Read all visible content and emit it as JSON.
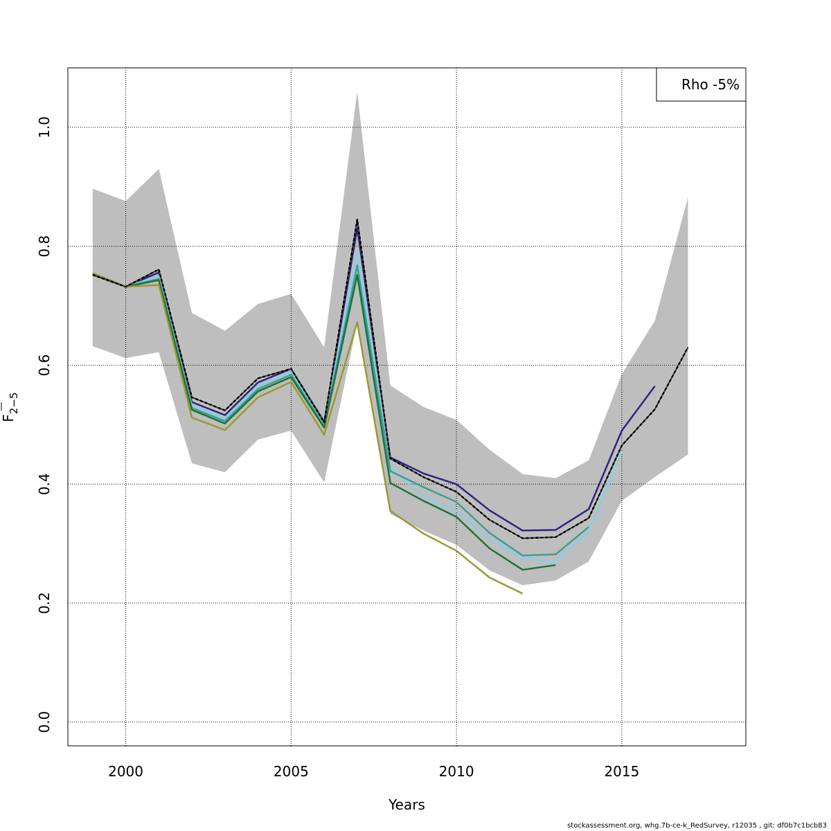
{
  "chart_data": {
    "type": "line",
    "xlabel": "Years",
    "ylabel_main": "F",
    "ylabel_sub": "2−5",
    "xlim": [
      1998.25,
      2018.75
    ],
    "ylim": [
      -0.04,
      1.1
    ],
    "xticks": [
      2000,
      2005,
      2010,
      2015
    ],
    "yticks": [
      0.0,
      0.2,
      0.4,
      0.6,
      0.8,
      1.0
    ],
    "ytick_labels": [
      "0.0",
      "0.2",
      "0.4",
      "0.6",
      "0.8",
      "1.0"
    ],
    "grid": true,
    "legend": {
      "text": "Rho -5%",
      "position": "top-right"
    },
    "confidence_band": {
      "color": "#bebebe",
      "x": [
        1999,
        2000,
        2001,
        2002,
        2003,
        2004,
        2005,
        2006,
        2007,
        2008,
        2009,
        2010,
        2011,
        2012,
        2013,
        2014,
        2015,
        2016,
        2017
      ],
      "upper": [
        0.897,
        0.876,
        0.93,
        0.688,
        0.658,
        0.703,
        0.72,
        0.63,
        1.06,
        0.566,
        0.53,
        0.508,
        0.458,
        0.417,
        0.41,
        0.44,
        0.585,
        0.675,
        0.882
      ],
      "lower": [
        0.632,
        0.612,
        0.622,
        0.435,
        0.42,
        0.475,
        0.49,
        0.403,
        0.672,
        0.35,
        0.322,
        0.298,
        0.255,
        0.23,
        0.238,
        0.27,
        0.372,
        0.412,
        0.45
      ]
    },
    "series": [
      {
        "color": "#000000",
        "dashed": true,
        "x": [
          1999,
          2000,
          2001,
          2002,
          2003,
          2004,
          2005,
          2006,
          2007,
          2008,
          2009,
          2010,
          2011,
          2012,
          2013,
          2014,
          2015,
          2016,
          2017
        ],
        "values": [
          0.752,
          0.732,
          0.761,
          0.546,
          0.524,
          0.578,
          0.594,
          0.504,
          0.845,
          0.443,
          0.412,
          0.387,
          0.34,
          0.309,
          0.311,
          0.343,
          0.465,
          0.526,
          0.63
        ]
      },
      {
        "color": "#2e2483",
        "dashed": false,
        "x": [
          1999,
          2000,
          2001,
          2002,
          2003,
          2004,
          2005,
          2006,
          2007,
          2008,
          2009,
          2010,
          2011,
          2012,
          2013,
          2014,
          2015,
          2016
        ],
        "values": [
          0.752,
          0.732,
          0.756,
          0.538,
          0.516,
          0.571,
          0.594,
          0.505,
          0.83,
          0.445,
          0.418,
          0.4,
          0.356,
          0.322,
          0.323,
          0.358,
          0.49,
          0.565
        ]
      },
      {
        "color": "#87ceeb",
        "dashed": false,
        "x": [
          1999,
          2000,
          2001,
          2002,
          2003,
          2004,
          2005,
          2006,
          2007,
          2008,
          2009,
          2010,
          2011,
          2012,
          2013,
          2014,
          2015
        ],
        "values": [
          0.752,
          0.732,
          0.75,
          0.532,
          0.51,
          0.565,
          0.588,
          0.5,
          0.79,
          0.428,
          0.38,
          0.355,
          0.308,
          0.275,
          0.27,
          0.32,
          0.455
        ]
      },
      {
        "color": "#3f9f93",
        "dashed": false,
        "x": [
          1999,
          2000,
          2001,
          2002,
          2003,
          2004,
          2005,
          2006,
          2007,
          2008,
          2009,
          2010,
          2011,
          2012,
          2013,
          2014
        ],
        "values": [
          0.752,
          0.732,
          0.745,
          0.528,
          0.506,
          0.56,
          0.584,
          0.497,
          0.768,
          0.422,
          0.395,
          0.37,
          0.318,
          0.28,
          0.282,
          0.328
        ]
      },
      {
        "color": "#1b7436",
        "dashed": false,
        "x": [
          1999,
          2000,
          2001,
          2002,
          2003,
          2004,
          2005,
          2006,
          2007,
          2008,
          2009,
          2010,
          2011,
          2012,
          2013
        ],
        "values": [
          0.752,
          0.732,
          0.743,
          0.525,
          0.502,
          0.556,
          0.58,
          0.495,
          0.752,
          0.402,
          0.372,
          0.345,
          0.292,
          0.256,
          0.264
        ]
      },
      {
        "color": "#999933",
        "dashed": false,
        "x": [
          1999,
          2000,
          2001,
          2002,
          2003,
          2004,
          2005,
          2006,
          2007,
          2008,
          2009,
          2010,
          2011,
          2012
        ],
        "values": [
          0.755,
          0.732,
          0.735,
          0.512,
          0.491,
          0.546,
          0.572,
          0.483,
          0.672,
          0.355,
          0.317,
          0.288,
          0.243,
          0.216
        ]
      }
    ]
  },
  "footer": "stockassessment.org, whg.7b-ce-k_RedSurvey, r12035 , git: df0b7c1bcb83"
}
